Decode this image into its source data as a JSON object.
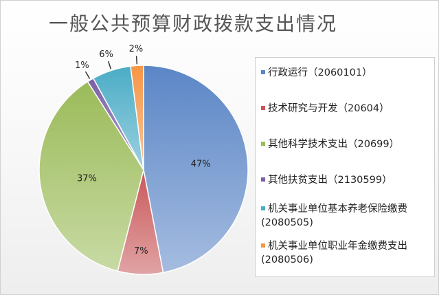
{
  "chart_data": {
    "type": "pie",
    "title": "一般公共预算财政拨款支出情况",
    "slices": [
      {
        "name": "行政运行（2060101）",
        "value": 47,
        "label": "47%",
        "color": "#5b86c6"
      },
      {
        "name": "技术研究与开发（20604）",
        "value": 7,
        "label": "7%",
        "color": "#c9585a"
      },
      {
        "name": "其他科学技术支出（20699）",
        "value": 37,
        "label": "37%",
        "color": "#9bbb59"
      },
      {
        "name": "其他扶贫支出（2130599）",
        "value": 1,
        "label": "1%",
        "color": "#7b5ea7"
      },
      {
        "name": "机关事业单位基本养老保险缴费(2080505)",
        "value": 6,
        "label": "6%",
        "color": "#4bacc6"
      },
      {
        "name": "机关事业单位职业年金缴费支出(2080506)",
        "value": 2,
        "label": "2%",
        "color": "#f79646"
      }
    ],
    "legend_position": "right"
  }
}
